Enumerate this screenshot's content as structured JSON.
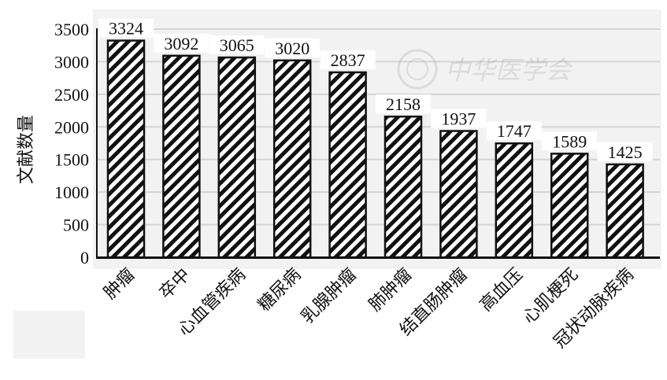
{
  "chart_data": {
    "type": "bar",
    "title": "",
    "xlabel": "",
    "ylabel": "文献数量",
    "ylim": [
      0,
      3500
    ],
    "yticks": [
      0,
      500,
      1000,
      1500,
      2000,
      2500,
      3000,
      3500
    ],
    "grid": true,
    "categories": [
      "肿瘤",
      "卒中",
      "心血管疾病",
      "糖尿病",
      "乳腺肿瘤",
      "肺肿瘤",
      "结直肠肿瘤",
      "高血压",
      "心肌梗死",
      "冠状动脉疾病"
    ],
    "values": [
      3324,
      3092,
      3065,
      3020,
      2837,
      2158,
      1937,
      1747,
      1589,
      1425
    ],
    "bar_fill": "diagonal-hatch",
    "colors": {
      "bar_stroke": "#111111",
      "plot_bg": "#f2f2f2",
      "grid": "#d4d4d4"
    }
  },
  "watermark": {
    "text": "中华医学会"
  }
}
